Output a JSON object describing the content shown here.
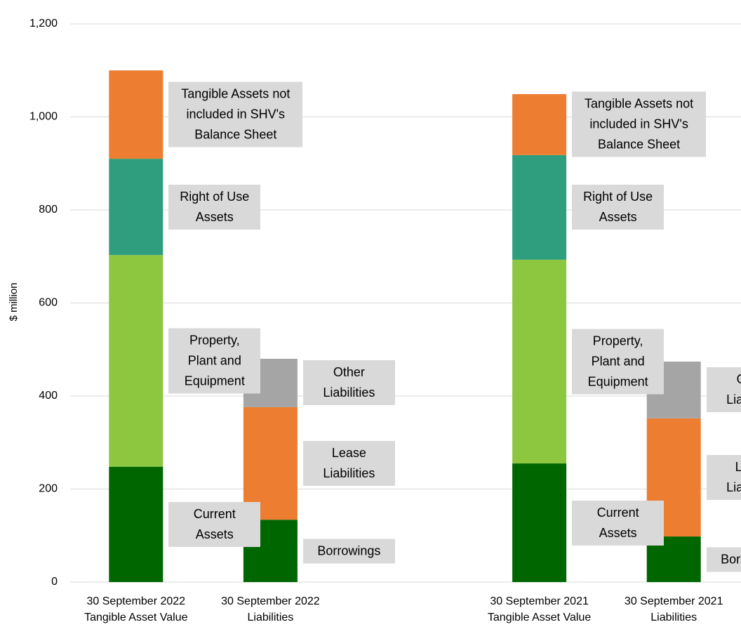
{
  "chart_data": {
    "type": "stacked_bar",
    "y_label": "$ million",
    "categories": [
      [
        "30 September 2022",
        "Tangible Asset Value"
      ],
      [
        "30 September 2022",
        "Liabilities"
      ],
      null,
      [
        "30 September 2021",
        "Tangible Asset Value"
      ],
      [
        "30 September 2021",
        "Liabilities"
      ]
    ],
    "series": [
      {
        "name": "Current Assets",
        "color": "#006600",
        "values": [
          248,
          null,
          null,
          255,
          null
        ]
      },
      {
        "name": "Property, Plant and Equipment",
        "color": "#8dc63f",
        "values": [
          455,
          null,
          null,
          438,
          null
        ]
      },
      {
        "name": "Right of Use Assets",
        "color": "#2e9e7e",
        "values": [
          207,
          null,
          null,
          225,
          null
        ]
      },
      {
        "name": "Tangible Assets not included in SHV's Balance Sheet",
        "color": "#ed7d31",
        "values": [
          190,
          null,
          null,
          131,
          null
        ]
      },
      {
        "name": "Borrowings",
        "color": "#006600",
        "values": [
          null,
          134,
          null,
          null,
          98
        ]
      },
      {
        "name": "Lease Liabilities",
        "color": "#ed7d31",
        "values": [
          null,
          242,
          null,
          null,
          254
        ]
      },
      {
        "name": "Other Liabilities",
        "color": "#a5a5a5",
        "values": [
          null,
          104,
          null,
          null,
          122
        ]
      }
    ],
    "ylim": [
      0,
      1200
    ],
    "yticks": [
      0,
      200,
      400,
      600,
      800,
      {
        "value": 1000,
        "label": "1,000"
      },
      {
        "value": 1200,
        "label": "1,200"
      }
    ],
    "grid": true
  }
}
